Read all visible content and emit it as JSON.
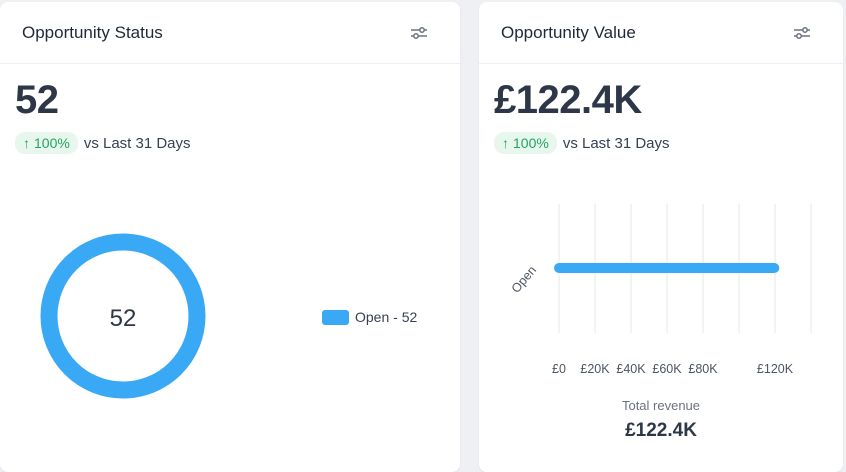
{
  "cards": {
    "status": {
      "title": "Opportunity Status",
      "value": "52",
      "trend": {
        "arrow": "↑",
        "percent": "100%",
        "label": "vs Last 31 Days",
        "direction": "up"
      },
      "donut": {
        "center_label": "52",
        "legend": "Open - 52",
        "color": "#3aa9f5"
      },
      "icon": "filter-sliders-icon"
    },
    "value": {
      "title": "Opportunity Value",
      "value": "£122.4K",
      "trend": {
        "arrow": "↑",
        "percent": "100%",
        "label": "vs Last 31 Days",
        "direction": "up"
      },
      "total_label": "Total revenue",
      "total_value": "£122.4K",
      "icon": "filter-sliders-icon"
    }
  },
  "chart_data": [
    {
      "type": "pie",
      "categories": [
        "Open"
      ],
      "values": [
        52
      ],
      "center_label": "52",
      "legend": [
        "Open - 52"
      ],
      "legend_position": "right"
    },
    {
      "type": "bar",
      "orientation": "horizontal",
      "categories": [
        "Open"
      ],
      "values": [
        122.4
      ],
      "x_ticks": [
        "£0",
        "£20K",
        "£40K",
        "£60K",
        "£80K",
        "£120K"
      ],
      "x_tick_values": [
        0,
        20,
        40,
        60,
        80,
        120
      ],
      "xlim": [
        0,
        140
      ],
      "xlabel": "Total revenue",
      "grid": true,
      "color": "#3aa9f5"
    }
  ]
}
